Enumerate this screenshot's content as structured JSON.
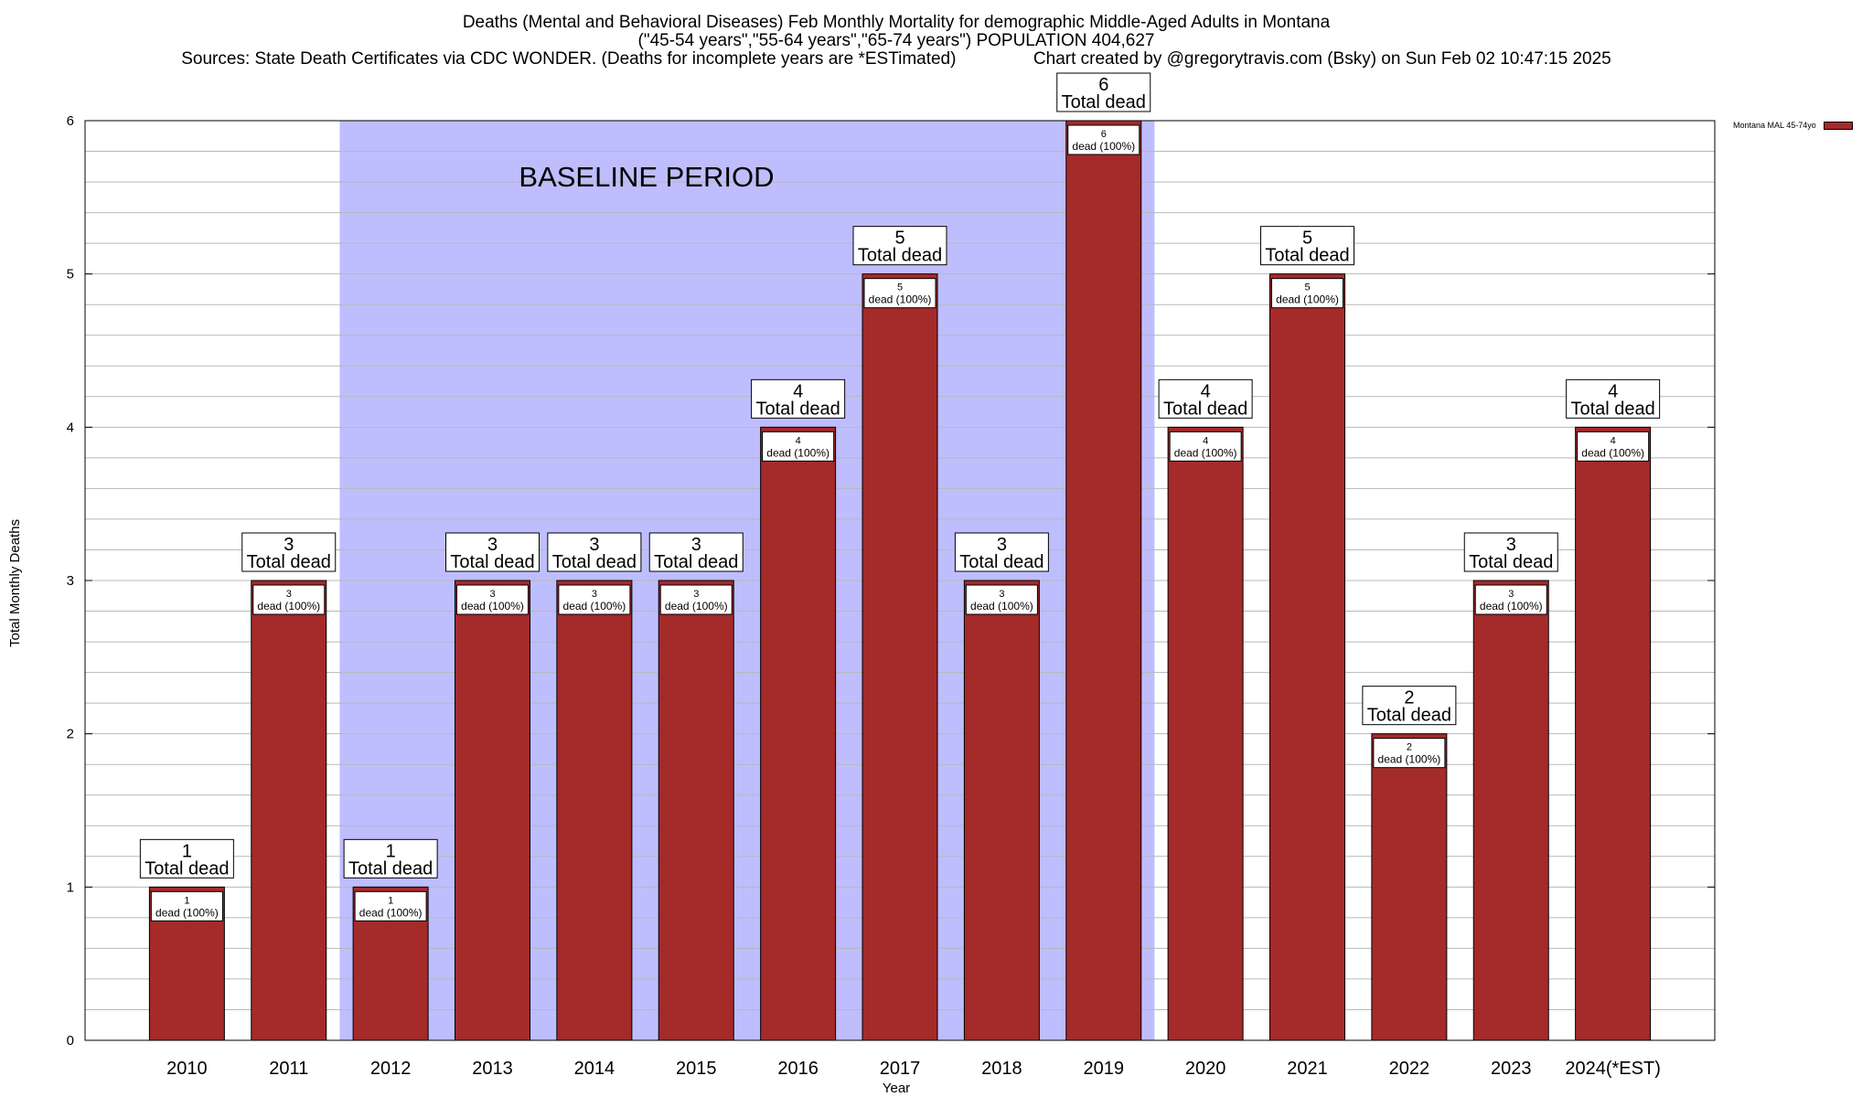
{
  "title": {
    "line1": "Deaths (Mental and Behavioral Diseases) Feb Monthly Mortality for demographic Middle-Aged Adults in Montana",
    "line2": "(\"45-54 years\",\"55-64 years\",\"65-74 years\") POPULATION 404,627",
    "line3": "Sources: State Death Certificates via CDC WONDER. (Deaths for incomplete years are *ESTimated)                Chart created by @gregorytravis.com (Bsky) on Sun Feb 02 10:47:15 2025"
  },
  "chart_data": {
    "type": "bar",
    "title": "Deaths (Mental and Behavioral Diseases) Feb Monthly Mortality for demographic Middle-Aged Adults in Montana",
    "xlabel": "Year",
    "ylabel": "Total Monthly Deaths",
    "ylim": [
      0,
      6
    ],
    "yticks": [
      0,
      1,
      2,
      3,
      4,
      5,
      6
    ],
    "categories": [
      "2010",
      "2011",
      "2012",
      "2013",
      "2014",
      "2015",
      "2016",
      "2017",
      "2018",
      "2019",
      "2020",
      "2021",
      "2022",
      "2023",
      "2024(*EST)"
    ],
    "series": [
      {
        "name": "Montana MAL 45-74yo",
        "color": "#a52a2a",
        "values": [
          1,
          3,
          1,
          3,
          3,
          3,
          4,
          5,
          3,
          6,
          4,
          5,
          2,
          3,
          4
        ]
      }
    ],
    "total_label_suffix": "Total dead",
    "inner_label_suffix": "dead (100%)",
    "baseline": {
      "label": "BASELINE PERIOD",
      "start": "2012",
      "end": "2019",
      "color": "#bebeff"
    },
    "legend": {
      "position": "top-right",
      "entry": "Montana MAL 45-74yo"
    },
    "grid": true
  }
}
